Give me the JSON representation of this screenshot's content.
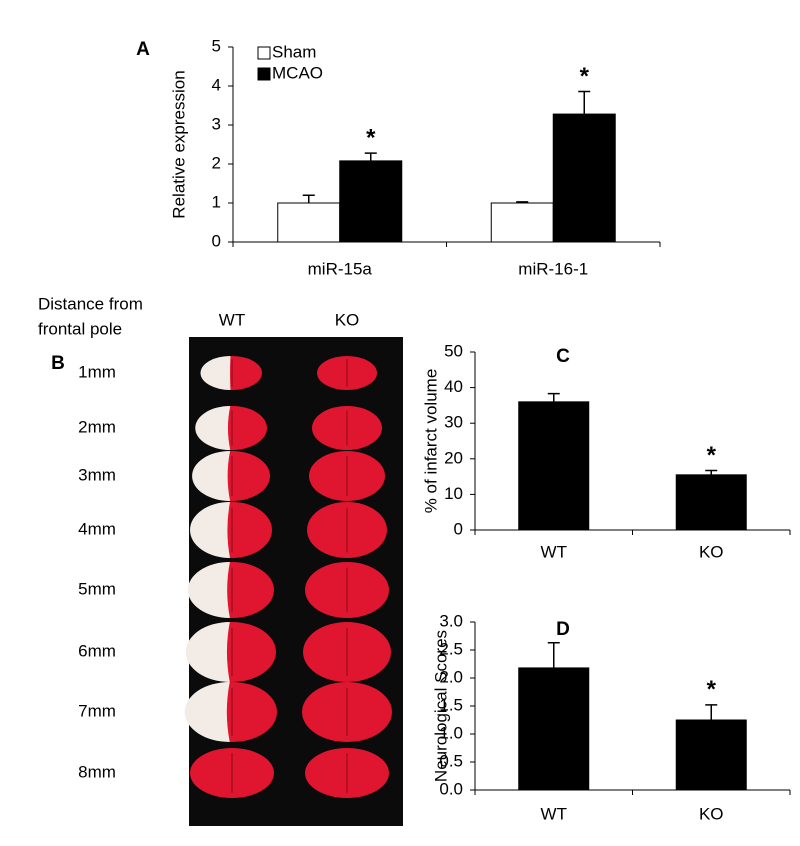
{
  "chart_data": [
    {
      "type": "bar",
      "panel_label": "A",
      "ylabel": "Relative expression",
      "categories": [
        "miR-15a",
        "miR-16-1"
      ],
      "series": [
        {
          "name": "Sham",
          "color": "#ffffff",
          "values": [
            1.0,
            1.0
          ],
          "errors": [
            0.2,
            0.03
          ]
        },
        {
          "name": "MCAO",
          "color": "#000000",
          "values": [
            2.08,
            3.28
          ],
          "errors": [
            0.2,
            0.58
          ]
        }
      ],
      "ylim": [
        0,
        5
      ],
      "yticks": [
        0,
        1,
        2,
        3,
        4,
        5
      ],
      "legend": "top-left",
      "annotations": [
        {
          "text": "*",
          "category": "miR-15a",
          "series": "MCAO"
        },
        {
          "text": "*",
          "category": "miR-16-1",
          "series": "MCAO"
        }
      ]
    },
    {
      "type": "bar",
      "panel_label": "C",
      "ylabel": "% of infarct volume",
      "categories": [
        "WT",
        "KO"
      ],
      "series": [
        {
          "color": "#000000",
          "values": [
            36.0,
            15.5
          ],
          "errors": [
            2.3,
            1.2
          ]
        }
      ],
      "ylim": [
        0,
        50
      ],
      "yticks": [
        0,
        10,
        20,
        30,
        40,
        50
      ],
      "annotations": [
        {
          "text": "*",
          "category": "KO"
        }
      ]
    },
    {
      "type": "bar",
      "panel_label": "D",
      "ylabel": "Neurological Scores",
      "categories": [
        "WT",
        "KO"
      ],
      "series": [
        {
          "color": "#000000",
          "values": [
            2.18,
            1.25
          ],
          "errors": [
            0.45,
            0.27
          ]
        }
      ],
      "ylim": [
        0,
        3
      ],
      "yticks": [
        {
          "value": 0,
          "label": "0.0"
        },
        {
          "value": 0.5,
          "label": "0.5"
        },
        {
          "value": 1,
          "label": "1.0"
        },
        {
          "value": 1.5,
          "label": "1.5"
        },
        {
          "value": 2,
          "label": "2.0"
        },
        {
          "value": 2.5,
          "label": "2.5"
        },
        {
          "value": 3,
          "label": "3.0"
        }
      ],
      "annotations": [
        {
          "text": "*",
          "category": "KO"
        }
      ]
    }
  ],
  "image_panel": {
    "panel_label": "B",
    "row_header": [
      "Distance from",
      "frontal pole"
    ],
    "columns": [
      "WT",
      "KO"
    ],
    "rows": [
      "1mm",
      "2mm",
      "3mm",
      "4mm",
      "5mm",
      "6mm",
      "7mm",
      "8mm"
    ]
  }
}
